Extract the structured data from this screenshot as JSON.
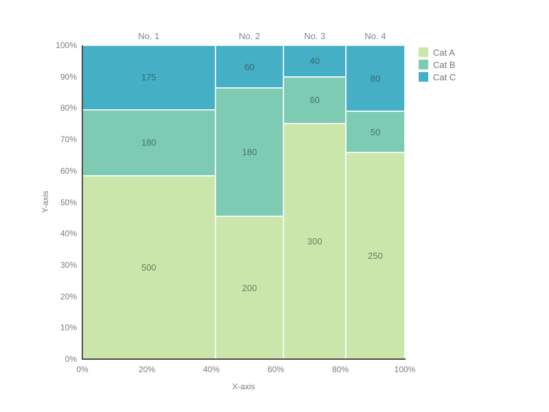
{
  "chart_data": {
    "type": "mosaic",
    "xlabel": "X-axis",
    "ylabel": "Y-axis",
    "categories": [
      "No. 1",
      "No. 2",
      "No. 3",
      "No. 4"
    ],
    "series": [
      {
        "name": "Cat A",
        "color": "#cbe6aa",
        "values": [
          500,
          200,
          300,
          250
        ]
      },
      {
        "name": "Cat B",
        "color": "#7dcbb2",
        "values": [
          180,
          180,
          60,
          50
        ]
      },
      {
        "name": "Cat C",
        "color": "#44afc5",
        "values": [
          175,
          60,
          40,
          80
        ]
      }
    ],
    "stack_order_bottom_to_top": [
      "Cat A",
      "Cat B",
      "Cat C"
    ],
    "x_ticks": [
      "0%",
      "20%",
      "40%",
      "60%",
      "80%",
      "100%"
    ],
    "y_ticks": [
      "0%",
      "10%",
      "20%",
      "30%",
      "40%",
      "50%",
      "60%",
      "70%",
      "80%",
      "90%",
      "100%"
    ],
    "x_range": [
      0,
      100
    ],
    "y_range": [
      0,
      100
    ],
    "legend_position": "top-right",
    "grid": false,
    "colors": {
      "axis_line": "#4d4d4d",
      "tick_text": "#7b7b7b",
      "category_title_text": "#858585",
      "legend_text": "#757575",
      "background": "#ffffff"
    }
  }
}
